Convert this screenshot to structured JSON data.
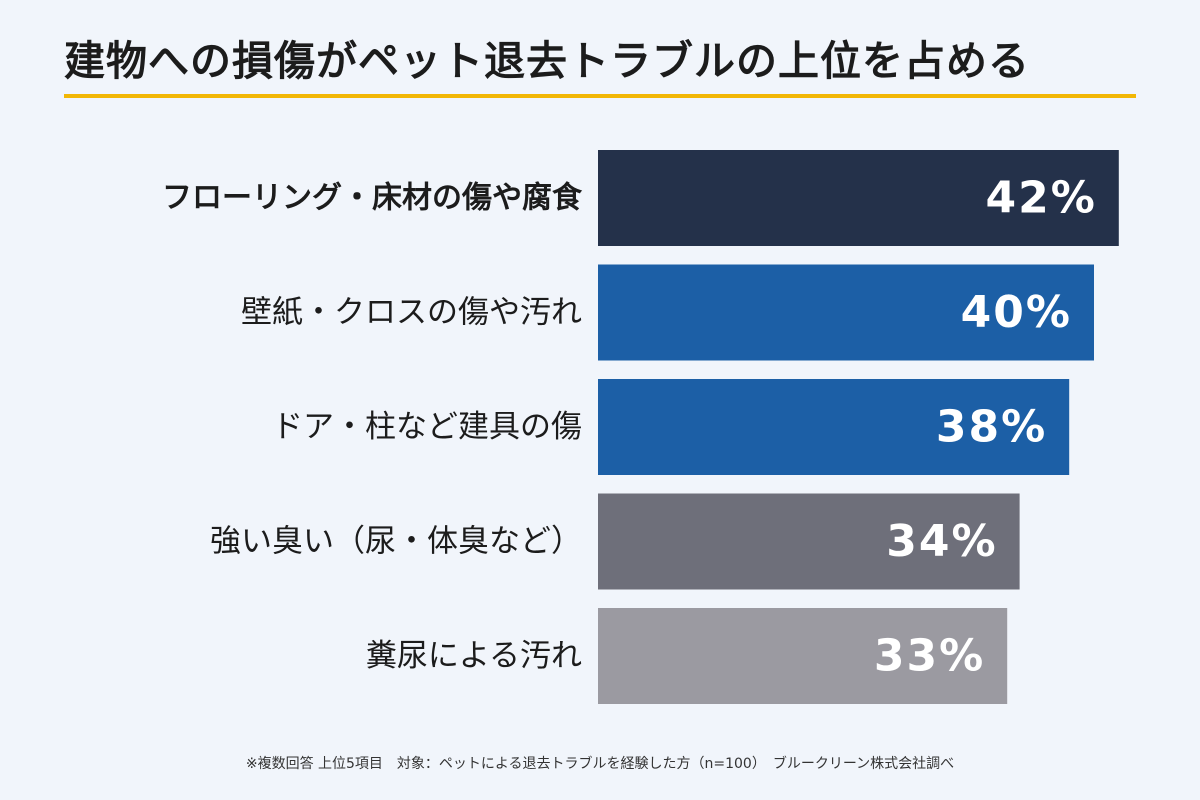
{
  "title": "建物への損傷がペット退去トラブルの上位を占める",
  "footnote": "※複数回答 上位5項目　対象：ペットによる退去トラブルを経験した方（n=100）　ブルークリーン株式会社調べ",
  "colors": {
    "background": "#f1f5fb",
    "title_underline": "#f2b705",
    "bar_label_text": "#ffffff"
  },
  "chart_data": {
    "type": "bar",
    "orientation": "horizontal",
    "categories": [
      "フローリング・床材の傷や腐食",
      "壁紙・クロスの傷や汚れ",
      "ドア・柱など建具の傷",
      "強い臭い（尿・体臭など）",
      "糞尿による汚れ"
    ],
    "values": [
      42,
      40,
      38,
      34,
      33
    ],
    "value_labels": [
      "42%",
      "40%",
      "38%",
      "34%",
      "33%"
    ],
    "unit": "%",
    "bar_colors": [
      "#24314a",
      "#1c5fa6",
      "#1c5fa6",
      "#6e6f7a",
      "#9b9aa1"
    ],
    "highlight_index": 0,
    "grid": false,
    "legend": "none"
  }
}
